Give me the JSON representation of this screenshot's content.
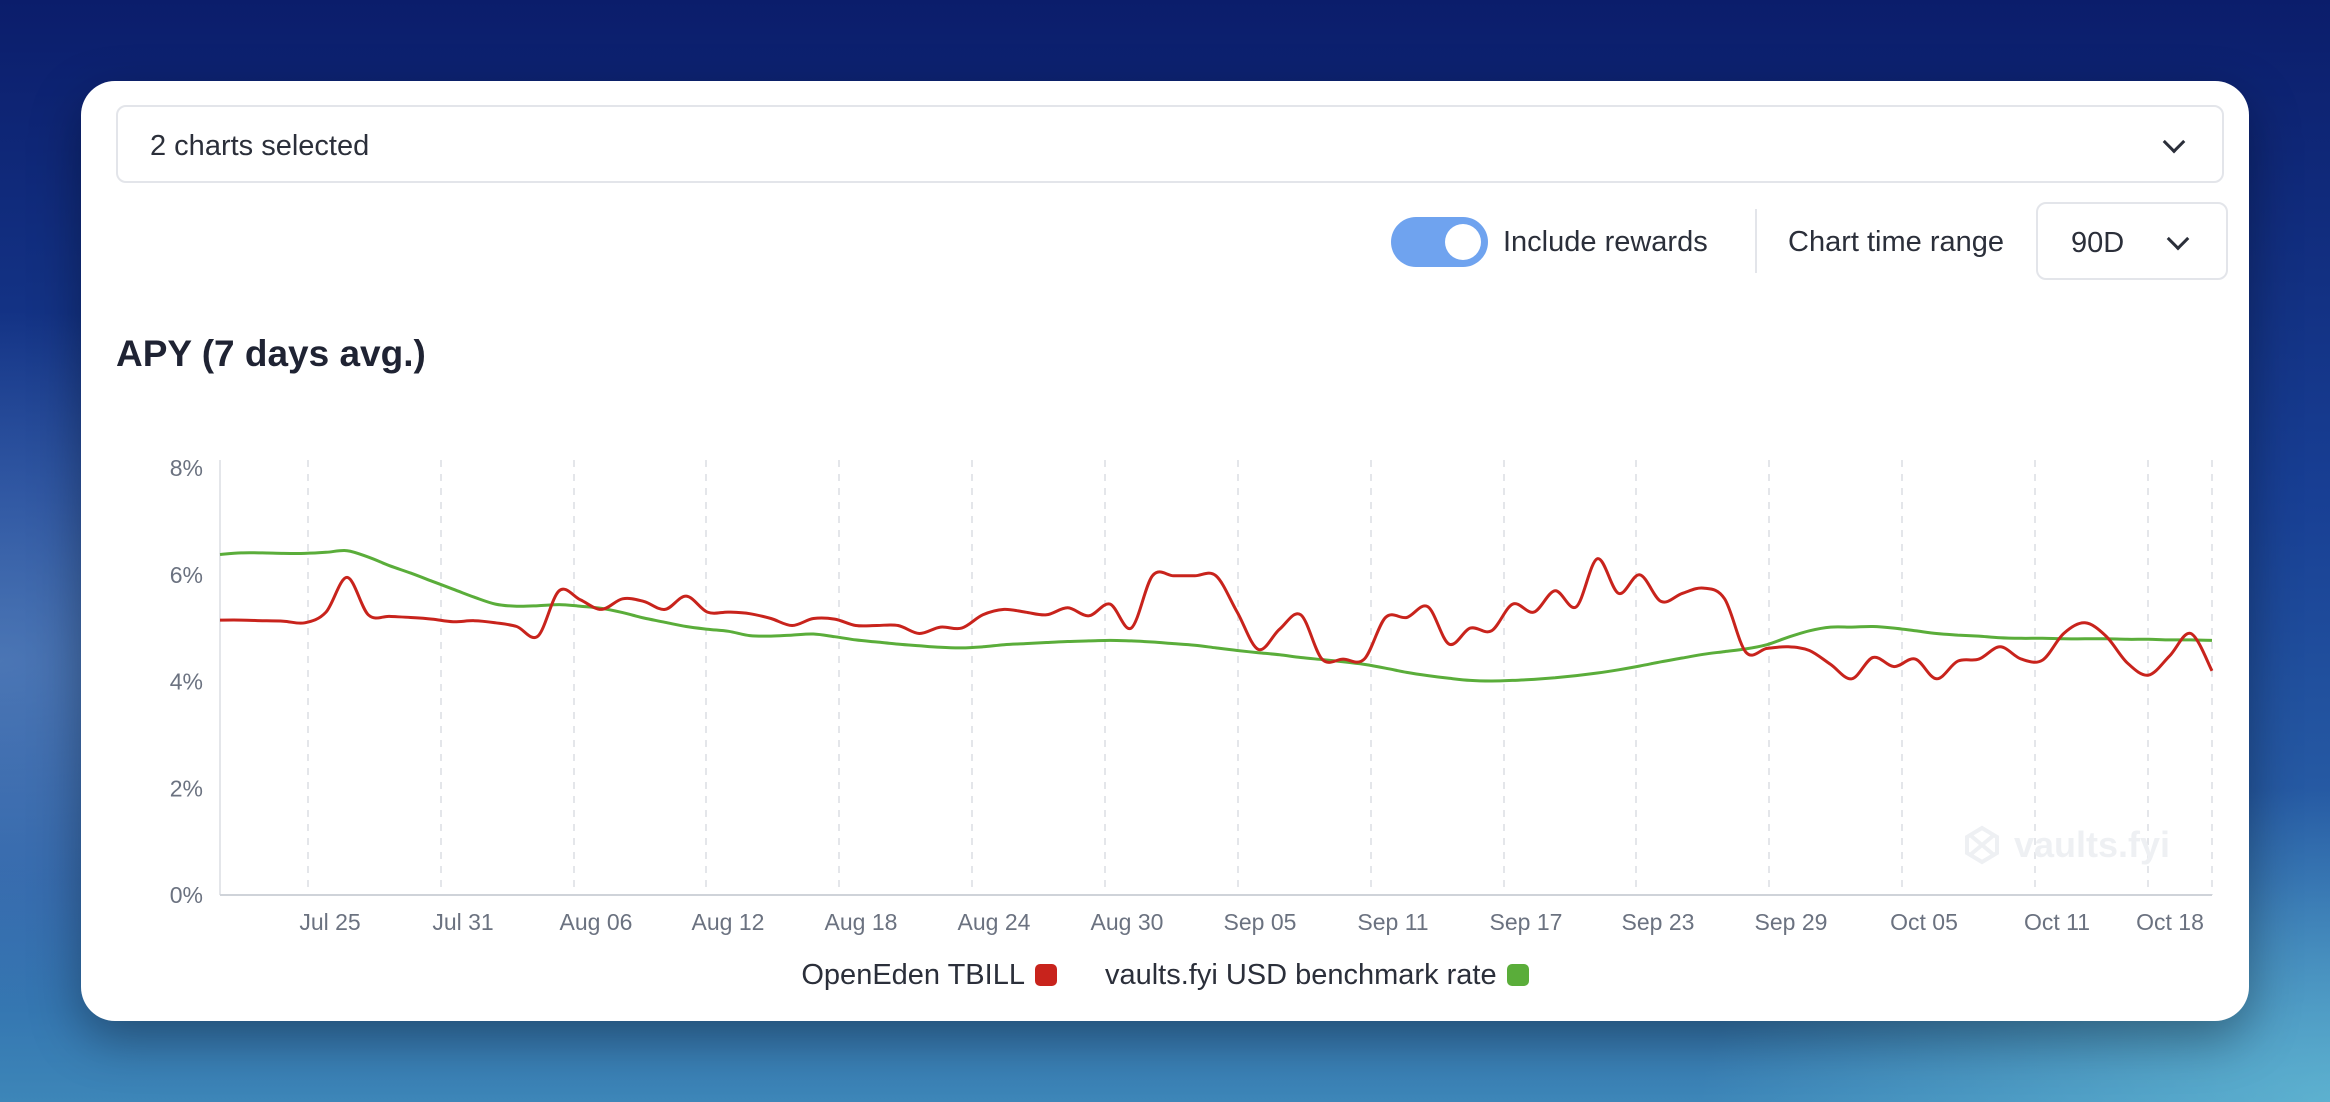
{
  "selector": {
    "value": "2 charts selected"
  },
  "controls": {
    "include_rewards_label": "Include rewards",
    "include_rewards_on": true,
    "time_range_label": "Chart time range",
    "time_range_value": "90D"
  },
  "watermark": "vaults.fyi",
  "colors": {
    "toggle": "#6fa3ef",
    "tbill": "#c8231c",
    "benchmark": "#5aad3a"
  },
  "chart_data": {
    "type": "line",
    "title": "APY (7 days avg.)",
    "xlabel": "",
    "ylabel": "",
    "ylim": [
      0,
      8
    ],
    "yticks": [
      "0%",
      "2%",
      "4%",
      "6%",
      "8%"
    ],
    "yunit": "%",
    "grid": "vertical dashed",
    "legend_position": "bottom-center",
    "x_start": "2024-07-20",
    "xticks": [
      "Jul 25",
      "Jul 31",
      "Aug 06",
      "Aug 12",
      "Aug 18",
      "Aug 24",
      "Aug 30",
      "Sep 05",
      "Sep 11",
      "Sep 17",
      "Sep 23",
      "Sep 29",
      "Oct 05",
      "Oct 11",
      "Oct 18"
    ],
    "series": [
      {
        "name": "OpenEden TBILL",
        "color": "#c8231c",
        "values": [
          5.15,
          5.15,
          5.14,
          5.13,
          5.1,
          5.3,
          5.95,
          5.25,
          5.22,
          5.2,
          5.17,
          5.12,
          5.14,
          5.1,
          5.03,
          4.85,
          5.7,
          5.53,
          5.35,
          5.55,
          5.5,
          5.35,
          5.6,
          5.3,
          5.3,
          5.27,
          5.18,
          5.05,
          5.18,
          5.17,
          5.05,
          5.05,
          5.05,
          4.9,
          5.02,
          5.0,
          5.25,
          5.35,
          5.3,
          5.25,
          5.38,
          5.23,
          5.45,
          5.0,
          5.98,
          5.98,
          5.98,
          5.98,
          5.3,
          4.6,
          4.98,
          5.25,
          4.42,
          4.42,
          4.42,
          5.2,
          5.2,
          5.4,
          4.7,
          5.0,
          4.95,
          5.45,
          5.3,
          5.7,
          5.4,
          6.3,
          5.65,
          6.0,
          5.5,
          5.65,
          5.75,
          5.55,
          4.55,
          4.62,
          4.65,
          4.58,
          4.32,
          4.05,
          4.45,
          4.28,
          4.42,
          4.05,
          4.38,
          4.42,
          4.65,
          4.42,
          4.4,
          4.9,
          5.1,
          4.85,
          4.35,
          4.12,
          4.48,
          4.9,
          4.2
        ]
      },
      {
        "name": "vaults.fyi USD benchmark rate",
        "color": "#5aad3a",
        "values": [
          6.38,
          6.41,
          6.41,
          6.4,
          6.4,
          6.42,
          6.45,
          6.33,
          6.17,
          6.03,
          5.88,
          5.73,
          5.58,
          5.45,
          5.41,
          5.42,
          5.44,
          5.41,
          5.37,
          5.29,
          5.19,
          5.11,
          5.03,
          4.98,
          4.94,
          4.86,
          4.85,
          4.87,
          4.89,
          4.84,
          4.78,
          4.74,
          4.7,
          4.67,
          4.64,
          4.63,
          4.65,
          4.69,
          4.71,
          4.73,
          4.75,
          4.76,
          4.77,
          4.76,
          4.74,
          4.71,
          4.68,
          4.63,
          4.58,
          4.54,
          4.5,
          4.45,
          4.41,
          4.37,
          4.32,
          4.25,
          4.17,
          4.11,
          4.06,
          4.02,
          4.01,
          4.02,
          4.04,
          4.07,
          4.11,
          4.16,
          4.22,
          4.29,
          4.37,
          4.44,
          4.51,
          4.56,
          4.61,
          4.69,
          4.83,
          4.95,
          5.02,
          5.02,
          5.03,
          5.0,
          4.95,
          4.9,
          4.87,
          4.85,
          4.82,
          4.81,
          4.81,
          4.8,
          4.8,
          4.8,
          4.79,
          4.79,
          4.78,
          4.78,
          4.77
        ]
      }
    ]
  }
}
